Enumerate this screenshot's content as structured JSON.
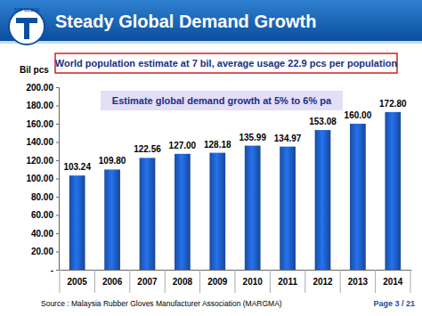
{
  "chart_data": {
    "type": "bar",
    "title": "Steady Global Demand Growth",
    "subtitle": "World population estimate at 7 bil, average usage 22.9 pcs per population",
    "annotation": "Estimate global demand growth at 5% to 6% pa",
    "y_label": "Bil pcs",
    "categories": [
      "2005",
      "2006",
      "2007",
      "2008",
      "2009",
      "2010",
      "2011",
      "2012",
      "2013",
      "2014"
    ],
    "values": [
      103.24,
      109.8,
      122.56,
      127,
      128.18,
      135.99,
      134.97,
      153.08,
      160,
      172.8
    ],
    "value_labels": [
      "103.24",
      "109.80",
      "122.56",
      "127.00",
      "128.18",
      "135.99",
      "134.97",
      "153.08",
      "160.00",
      "172.80"
    ],
    "color": "#1f5fc8",
    "ylim": [
      0,
      200
    ],
    "yticks": [
      {
        "value": 0,
        "label": "-"
      },
      {
        "value": 20,
        "label": "20.00"
      },
      {
        "value": 40,
        "label": "40.00"
      },
      {
        "value": 60,
        "label": "60.00"
      },
      {
        "value": 80,
        "label": "80.00"
      },
      {
        "value": 100,
        "label": "100.00"
      },
      {
        "value": 120,
        "label": "120.00"
      },
      {
        "value": 140,
        "label": "140.00"
      },
      {
        "value": 160,
        "label": "160.00"
      },
      {
        "value": 180,
        "label": "180.00"
      },
      {
        "value": 200,
        "label": "200.00"
      }
    ],
    "grid": false,
    "data_labels": true,
    "source": "Source : Malaysia Rubber Gloves Manufacturer Association (MARGMA)"
  },
  "slide": {
    "logo_text": "TOP GLOVE",
    "page": "Page 3 / 21"
  }
}
